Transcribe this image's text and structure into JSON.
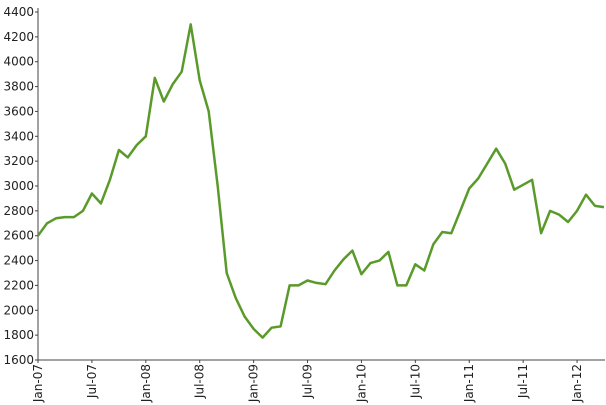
{
  "chart_data": {
    "type": "line",
    "categories": [
      "Jan-07",
      null,
      null,
      null,
      null,
      null,
      "Jul-07",
      null,
      null,
      null,
      null,
      null,
      "Jan-08",
      null,
      null,
      null,
      null,
      null,
      "Jul-08",
      null,
      null,
      null,
      null,
      null,
      "Jan-09",
      null,
      null,
      null,
      null,
      null,
      "Jul-09",
      null,
      null,
      null,
      null,
      null,
      "Jan-10",
      null,
      null,
      null,
      null,
      null,
      "Jul-10",
      null,
      null,
      null,
      null,
      null,
      "Jan-11",
      null,
      null,
      null,
      null,
      null,
      "Jul-11",
      null,
      null,
      null,
      null,
      null,
      "Jan-12",
      null,
      null,
      null
    ],
    "series": [
      {
        "color": "#5a9a2a",
        "values": [
          2600,
          2700,
          2740,
          2750,
          2750,
          2800,
          2940,
          2860,
          3050,
          3290,
          3230,
          3330,
          3400,
          3870,
          3680,
          3820,
          3920,
          4300,
          3850,
          3600,
          3000,
          2300,
          2100,
          1950,
          1850,
          1780,
          1860,
          1870,
          2200,
          2200,
          2240,
          2220,
          2210,
          2320,
          2410,
          2480,
          2290,
          2380,
          2400,
          2470,
          2200,
          2200,
          2370,
          2320,
          2530,
          2630,
          2620,
          2800,
          2980,
          3060,
          3180,
          3300,
          3180,
          2970,
          3010,
          3050,
          2620,
          2800,
          2770,
          2710,
          2800,
          2930,
          2840,
          2830
        ]
      }
    ],
    "ylim": [
      1600,
      4400
    ],
    "yticks": [
      1600,
      1800,
      2000,
      2200,
      2400,
      2600,
      2800,
      3000,
      3200,
      3400,
      3600,
      3800,
      4000,
      4200,
      4400
    ],
    "grid": false
  }
}
